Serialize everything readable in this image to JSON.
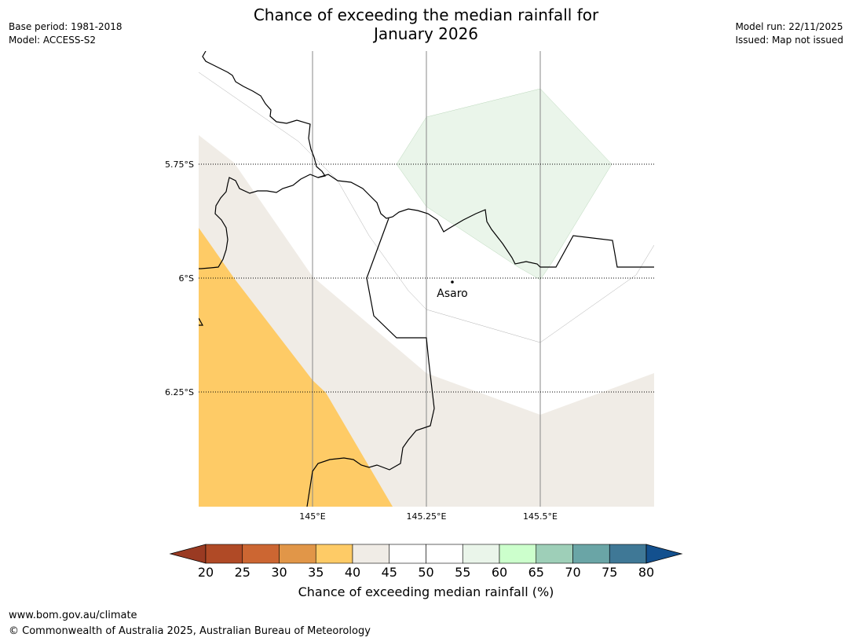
{
  "title": {
    "line1": "Chance of exceeding the median rainfall for",
    "line2": "January 2026"
  },
  "meta_left": {
    "base_period": "Base period: 1981-2018",
    "model": "Model: ACCESS-S2"
  },
  "meta_right": {
    "model_run": "Model run: 22/11/2025",
    "issued": "Issued: Map not issued"
  },
  "map": {
    "lat_labels": [
      "5.75°S",
      "6°S",
      "6.25°S"
    ],
    "lon_labels": [
      "145°E",
      "145.25°E",
      "145.5°E"
    ],
    "place": "Asaro",
    "colors": {
      "c35_40": "#fecb66",
      "c40_45": "#f0ece6",
      "c55_60": "#eaf5ea",
      "border": "#000000",
      "gridline": "#888888"
    }
  },
  "colorbar": {
    "title": "Chance of exceeding median rainfall (%)",
    "ticks": [
      "20",
      "25",
      "30",
      "35",
      "40",
      "45",
      "50",
      "55",
      "60",
      "65",
      "70",
      "75",
      "80"
    ],
    "under_color": "#9a3a22",
    "over_color": "#13508e",
    "colors": [
      "#b04a26",
      "#cc6632",
      "#e19648",
      "#fecb66",
      "#f0ece6",
      "#ffffff",
      "#ffffff",
      "#eaf5ea",
      "#ccffcc",
      "#9ecfb8",
      "#6aa5a6",
      "#3f7896"
    ]
  },
  "footer": {
    "url": "www.bom.gov.au/climate",
    "copyright": "© Commonwealth of Australia 2025, Australian Bureau of Meteorology"
  }
}
